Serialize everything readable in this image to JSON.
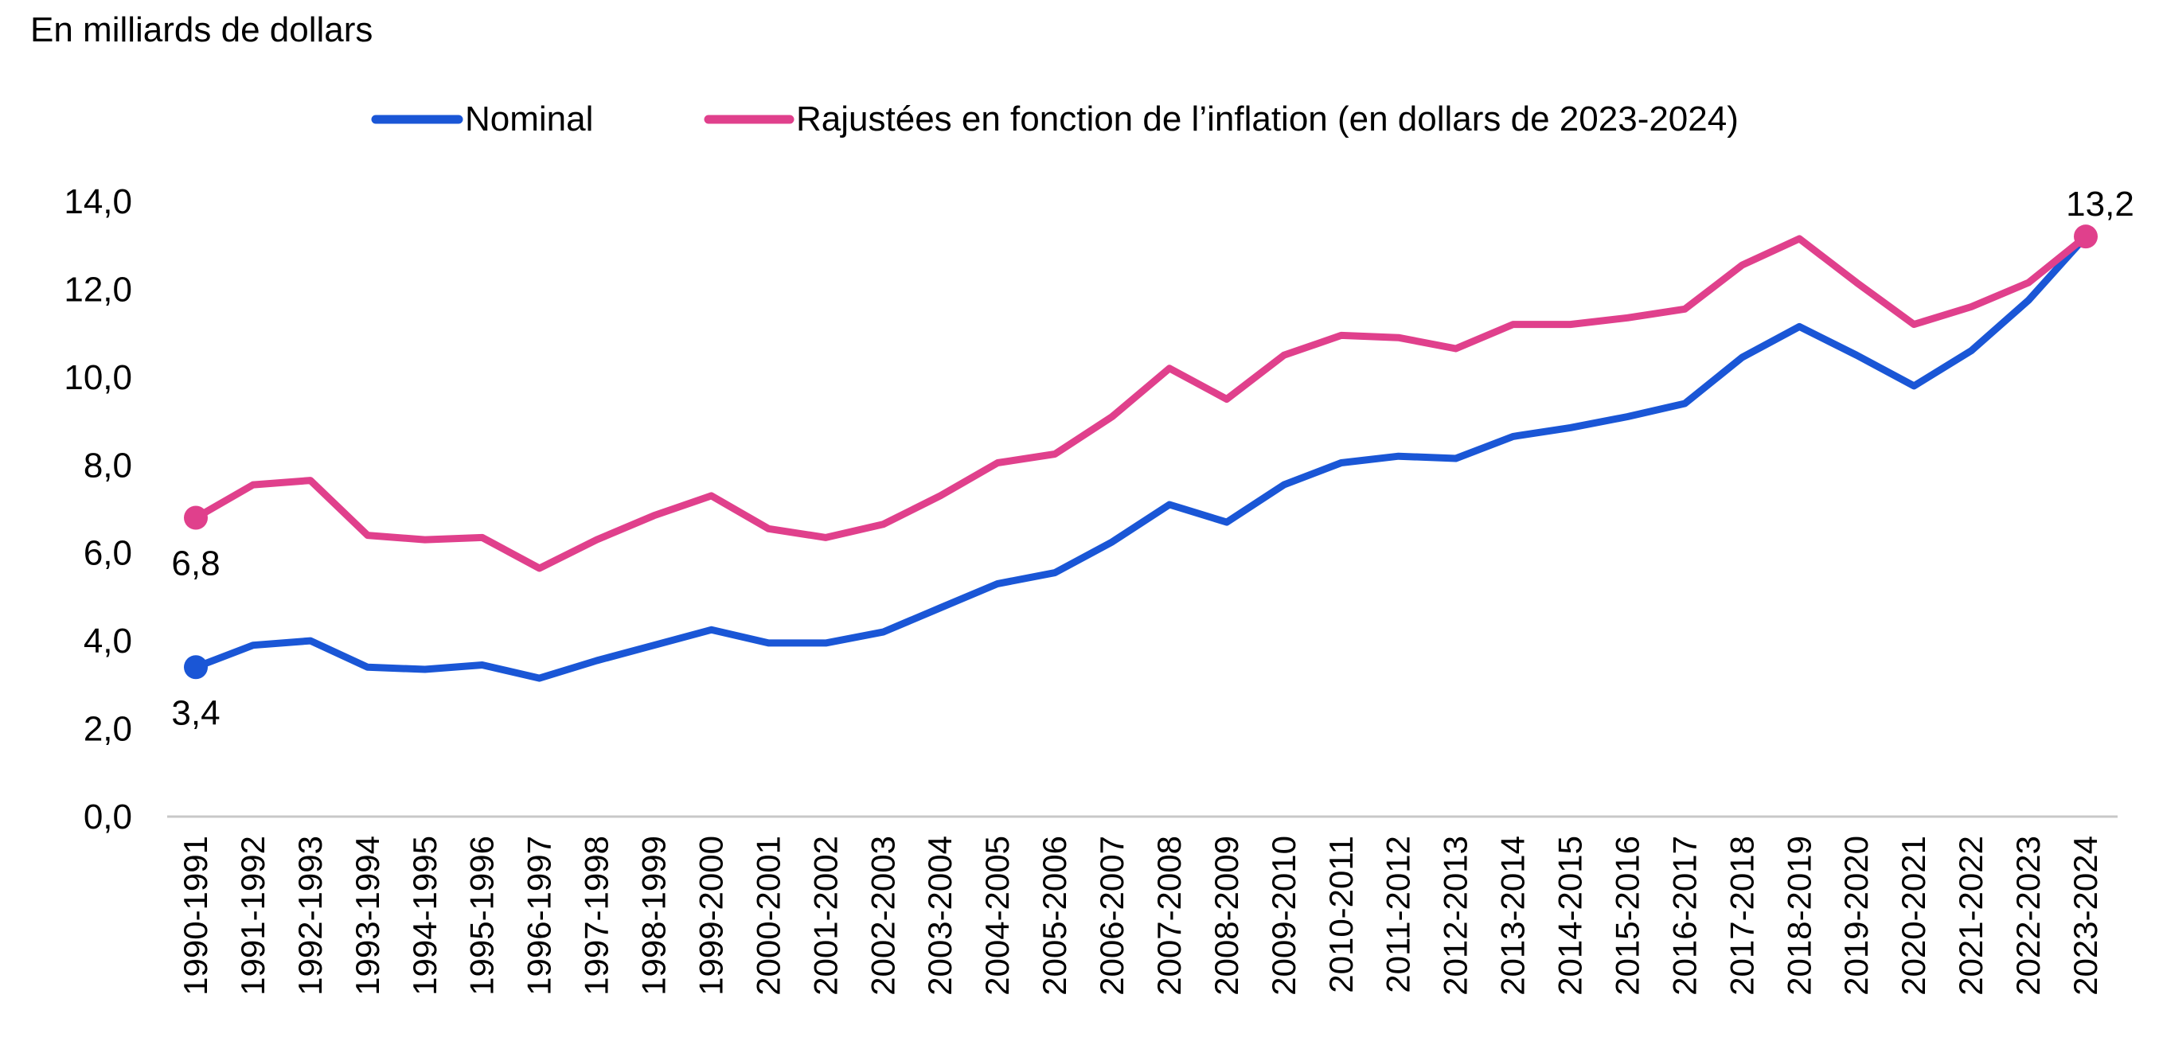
{
  "chart_data": {
    "type": "line",
    "ylabel": "En milliards de dollars",
    "ylim": [
      0,
      14
    ],
    "yticks": [
      "0,0",
      "2,0",
      "4,0",
      "6,0",
      "8,0",
      "10,0",
      "12,0",
      "14,0"
    ],
    "categories": [
      "1990-1991",
      "1991-1992",
      "1992-1993",
      "1993-1994",
      "1994-1995",
      "1995-1996",
      "1996-1997",
      "1997-1998",
      "1998-1999",
      "1999-2000",
      "2000-2001",
      "2001-2002",
      "2002-2003",
      "2003-2004",
      "2004-2005",
      "2005-2006",
      "2006-2007",
      "2007-2008",
      "2008-2009",
      "2009-2010",
      "2010-2011",
      "2011-2012",
      "2012-2013",
      "2013-2014",
      "2014-2015",
      "2015-2016",
      "2016-2017",
      "2017-2018",
      "2018-2019",
      "2019-2020",
      "2020-2021",
      "2021-2022",
      "2022-2023",
      "2023-2024"
    ],
    "series": [
      {
        "name": "Nominal",
        "color": "#1a56d6",
        "values": [
          3.4,
          3.9,
          4.0,
          3.4,
          3.35,
          3.45,
          3.15,
          3.55,
          3.9,
          4.25,
          3.95,
          3.95,
          4.2,
          4.75,
          5.3,
          5.55,
          6.25,
          7.1,
          6.7,
          7.55,
          8.05,
          8.2,
          8.15,
          8.65,
          8.85,
          9.1,
          9.4,
          10.45,
          11.15,
          10.5,
          9.8,
          10.6,
          11.75,
          13.2
        ]
      },
      {
        "name": "Rajustées en fonction de l’inflation (en dollars de 2023-2024)",
        "color": "#e0408c",
        "values": [
          6.8,
          7.55,
          7.65,
          6.4,
          6.3,
          6.35,
          5.65,
          6.3,
          6.85,
          7.3,
          6.55,
          6.35,
          6.65,
          7.3,
          8.05,
          8.25,
          9.1,
          10.2,
          9.5,
          10.5,
          10.95,
          10.9,
          10.65,
          11.2,
          11.2,
          11.35,
          11.55,
          12.55,
          13.15,
          12.15,
          11.2,
          11.6,
          12.15,
          13.2
        ]
      }
    ],
    "annotations": [
      {
        "series": 1,
        "index": 0,
        "label": "6,8"
      },
      {
        "series": 0,
        "index": 0,
        "label": "3,4"
      },
      {
        "series": 1,
        "index": 33,
        "label": "13,2"
      }
    ],
    "legend_position": "top",
    "grid": false
  }
}
